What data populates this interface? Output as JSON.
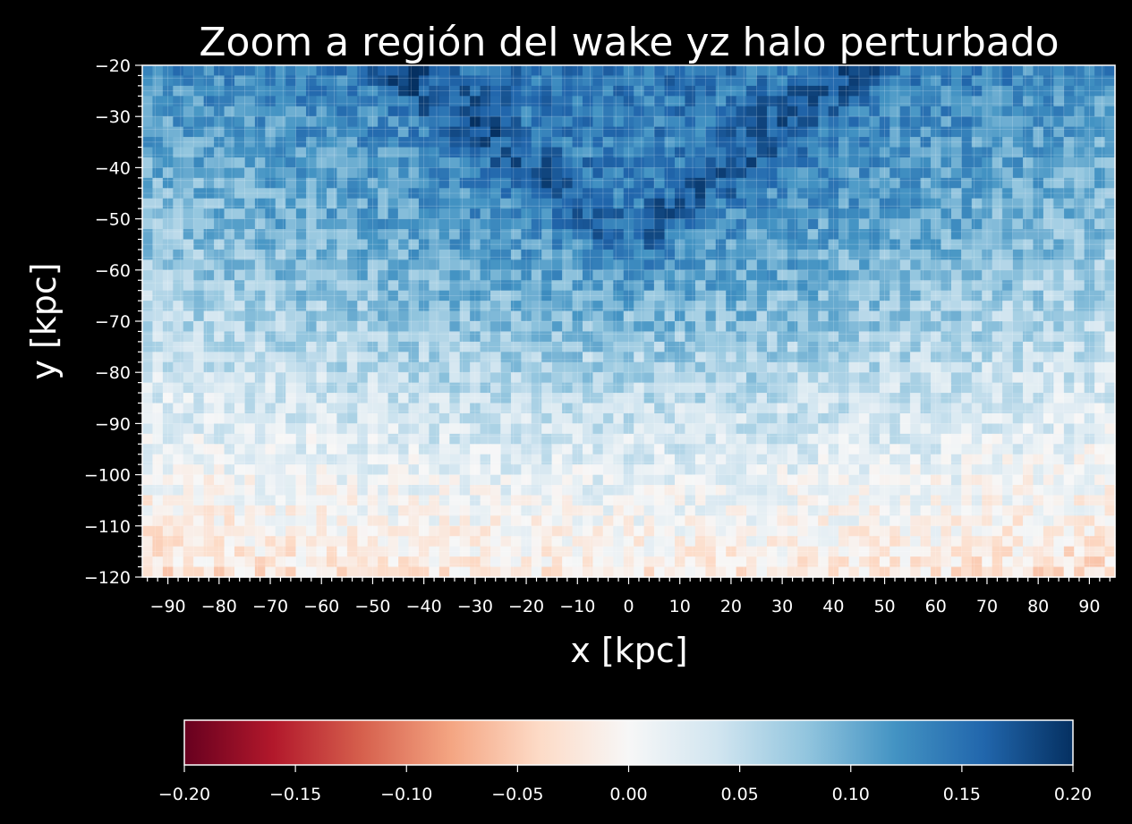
{
  "chart_data": {
    "type": "heatmap",
    "title": "Zoom a región del wake yz halo perturbado",
    "xlabel": "x [kpc]",
    "ylabel": "y [kpc]",
    "xlim": [
      -95,
      95
    ],
    "ylim": [
      -120,
      -20
    ],
    "x_ticks": [
      -90,
      -80,
      -70,
      -60,
      -50,
      -40,
      -30,
      -20,
      -10,
      0,
      10,
      20,
      30,
      40,
      50,
      60,
      70,
      80,
      90
    ],
    "y_ticks": [
      -20,
      -30,
      -40,
      -50,
      -60,
      -70,
      -80,
      -90,
      -100,
      -110,
      -120
    ],
    "grid": true,
    "colormap": "RdBu",
    "colorbar": {
      "orientation": "horizontal",
      "placement": "bottom",
      "range": [
        -0.2,
        0.2
      ],
      "ticks": [
        "−0.20",
        "−0.15",
        "−0.10",
        "−0.05",
        "0.00",
        "0.05",
        "0.10",
        "0.15",
        "0.20"
      ]
    },
    "field_description": {
      "max_value_region_y": -55,
      "wake_arms": "V-shaped overdensity with vertex near x=0, y=-55, arms rising to x≈±45 at y=-20",
      "top_value": 0.14,
      "bottom_value": -0.02,
      "noise": 0.03
    }
  }
}
